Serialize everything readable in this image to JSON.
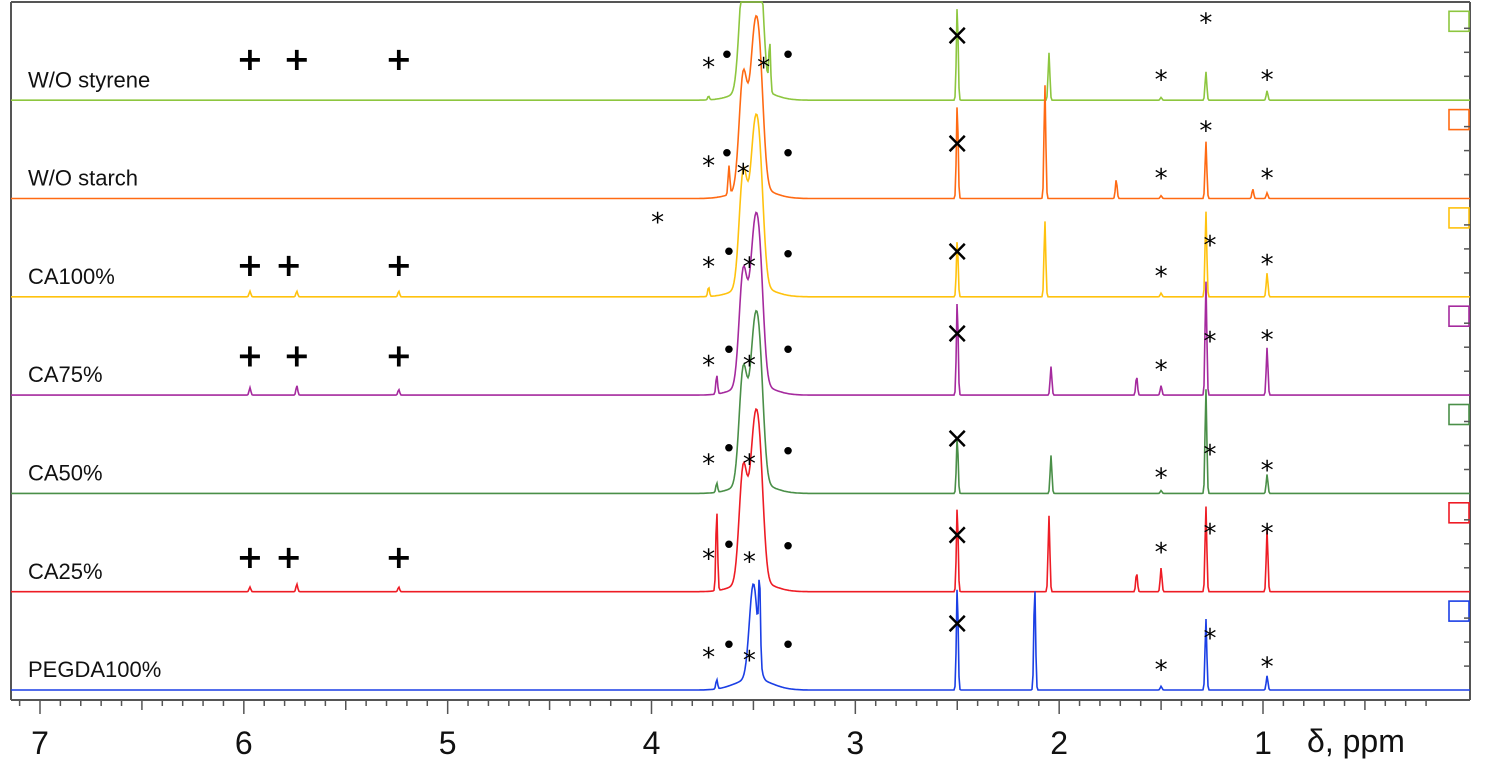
{
  "chart_data": {
    "type": "line",
    "title": "",
    "xlabel": "δ, ppm",
    "ylabel": "",
    "xlim": [
      7.3,
      0.1
    ],
    "x_reversed": true,
    "grid": false,
    "x_ticks": [
      {
        "value": 7,
        "label": "7"
      },
      {
        "value": 6,
        "label": "6"
      },
      {
        "value": 5,
        "label": "5"
      },
      {
        "value": 4,
        "label": "4"
      },
      {
        "value": 3,
        "label": "3"
      },
      {
        "value": 2,
        "label": "2"
      },
      {
        "value": 1,
        "label": "1"
      }
    ],
    "series": [
      {
        "name": "W/O styrene",
        "color": "#8dc63f",
        "base": 0.03,
        "peaks": [
          [
            3.72,
            0.04
          ],
          [
            3.55,
            1.2
          ],
          [
            3.5,
            1.2
          ],
          [
            3.47,
            1.2
          ],
          [
            3.42,
            0.5
          ],
          [
            2.5,
            1.0
          ],
          [
            2.05,
            0.5
          ],
          [
            1.5,
            0.03
          ],
          [
            1.28,
            0.3
          ],
          [
            0.98,
            0.1
          ]
        ],
        "markers": [
          {
            "sym": "+",
            "x": 5.97,
            "h": 0.32
          },
          {
            "sym": "+",
            "x": 5.74,
            "h": 0.32
          },
          {
            "sym": "+",
            "x": 5.24,
            "h": 0.32
          },
          {
            "sym": "*",
            "x": 3.72,
            "h": 0.38
          },
          {
            "sym": "•",
            "x": 3.63,
            "h": 0.38
          },
          {
            "sym": "*",
            "x": 3.45,
            "h": 0.38
          },
          {
            "sym": "•",
            "x": 3.33,
            "h": 0.38
          },
          {
            "sym": "×",
            "x": 2.5,
            "h": 0.58
          },
          {
            "sym": "*",
            "x": 1.5,
            "h": 0.25
          },
          {
            "sym": "*",
            "x": 1.28,
            "h": 0.85
          },
          {
            "sym": "*",
            "x": 0.98,
            "h": 0.25
          }
        ]
      },
      {
        "name": "W/O starch",
        "color": "#ff6a13",
        "base": 0.03,
        "peaks": [
          [
            3.62,
            0.3
          ],
          [
            3.55,
            1.2
          ],
          [
            3.5,
            1.2
          ],
          [
            3.47,
            1.2
          ],
          [
            2.5,
            1.0
          ],
          [
            2.07,
            1.2
          ],
          [
            1.72,
            0.2
          ],
          [
            1.5,
            0.03
          ],
          [
            1.28,
            0.6
          ],
          [
            1.05,
            0.1
          ],
          [
            0.98,
            0.06
          ]
        ],
        "markers": [
          {
            "sym": "*",
            "x": 3.72,
            "h": 0.38
          },
          {
            "sym": "•",
            "x": 3.63,
            "h": 0.38
          },
          {
            "sym": "*",
            "x": 3.55,
            "h": 0.3
          },
          {
            "sym": "•",
            "x": 3.33,
            "h": 0.38
          },
          {
            "sym": "×",
            "x": 2.5,
            "h": 0.48
          },
          {
            "sym": "*",
            "x": 1.5,
            "h": 0.25
          },
          {
            "sym": "*",
            "x": 1.28,
            "h": 0.75
          },
          {
            "sym": "*",
            "x": 0.98,
            "h": 0.25
          }
        ]
      },
      {
        "name": "CA100%",
        "color": "#ffc20e",
        "base": 0.03,
        "peaks": [
          [
            5.97,
            0.06
          ],
          [
            5.74,
            0.06
          ],
          [
            5.24,
            0.06
          ],
          [
            3.72,
            0.1
          ],
          [
            3.55,
            1.2
          ],
          [
            3.5,
            1.2
          ],
          [
            3.47,
            1.2
          ],
          [
            2.5,
            0.6
          ],
          [
            2.07,
            0.8
          ],
          [
            1.5,
            0.04
          ],
          [
            1.28,
            0.9
          ],
          [
            0.98,
            0.25
          ]
        ],
        "markers": [
          {
            "sym": "*",
            "x": 3.97,
            "h": 0.82
          },
          {
            "sym": "+",
            "x": 5.97,
            "h": 0.22
          },
          {
            "sym": "+",
            "x": 5.78,
            "h": 0.22
          },
          {
            "sym": "+",
            "x": 5.24,
            "h": 0.22
          },
          {
            "sym": "*",
            "x": 3.72,
            "h": 0.35
          },
          {
            "sym": "•",
            "x": 3.62,
            "h": 0.38
          },
          {
            "sym": "*",
            "x": 3.52,
            "h": 0.35
          },
          {
            "sym": "•",
            "x": 3.33,
            "h": 0.35
          },
          {
            "sym": "×",
            "x": 2.5,
            "h": 0.38
          },
          {
            "sym": "*",
            "x": 1.5,
            "h": 0.25
          },
          {
            "sym": "*",
            "x": 1.26,
            "h": 0.58
          },
          {
            "sym": "*",
            "x": 0.98,
            "h": 0.38
          }
        ]
      },
      {
        "name": "CA75%",
        "color": "#a52a9e",
        "base": 0.03,
        "peaks": [
          [
            5.97,
            0.08
          ],
          [
            5.74,
            0.1
          ],
          [
            5.24,
            0.06
          ],
          [
            3.68,
            0.2
          ],
          [
            3.55,
            1.2
          ],
          [
            3.5,
            1.2
          ],
          [
            3.47,
            1.2
          ],
          [
            2.5,
            1.0
          ],
          [
            2.04,
            0.3
          ],
          [
            1.62,
            0.2
          ],
          [
            1.5,
            0.1
          ],
          [
            1.28,
            1.2
          ],
          [
            0.98,
            0.5
          ]
        ],
        "markers": [
          {
            "sym": "+",
            "x": 5.97,
            "h": 0.3
          },
          {
            "sym": "+",
            "x": 5.74,
            "h": 0.3
          },
          {
            "sym": "+",
            "x": 5.24,
            "h": 0.3
          },
          {
            "sym": "*",
            "x": 3.72,
            "h": 0.35
          },
          {
            "sym": "•",
            "x": 3.62,
            "h": 0.38
          },
          {
            "sym": "*",
            "x": 3.52,
            "h": 0.35
          },
          {
            "sym": "•",
            "x": 3.33,
            "h": 0.38
          },
          {
            "sym": "×",
            "x": 2.5,
            "h": 0.55
          },
          {
            "sym": "*",
            "x": 1.5,
            "h": 0.3
          },
          {
            "sym": "*",
            "x": 1.26,
            "h": 0.6
          },
          {
            "sym": "*",
            "x": 0.98,
            "h": 0.62
          }
        ]
      },
      {
        "name": "CA50%",
        "color": "#4a8f48",
        "base": 0.03,
        "peaks": [
          [
            3.68,
            0.1
          ],
          [
            3.55,
            1.2
          ],
          [
            3.5,
            1.2
          ],
          [
            3.47,
            1.2
          ],
          [
            2.5,
            0.6
          ],
          [
            2.04,
            0.4
          ],
          [
            1.5,
            0.03
          ],
          [
            1.28,
            1.1
          ],
          [
            0.98,
            0.2
          ]
        ],
        "markers": [
          {
            "sym": "*",
            "x": 3.72,
            "h": 0.35
          },
          {
            "sym": "•",
            "x": 3.62,
            "h": 0.38
          },
          {
            "sym": "*",
            "x": 3.52,
            "h": 0.35
          },
          {
            "sym": "•",
            "x": 3.33,
            "h": 0.35
          },
          {
            "sym": "×",
            "x": 2.5,
            "h": 0.48
          },
          {
            "sym": "*",
            "x": 1.5,
            "h": 0.2
          },
          {
            "sym": "*",
            "x": 1.26,
            "h": 0.45
          },
          {
            "sym": "*",
            "x": 0.98,
            "h": 0.28
          }
        ]
      },
      {
        "name": "CA25%",
        "color": "#ee1c25",
        "base": 0.03,
        "peaks": [
          [
            5.97,
            0.05
          ],
          [
            5.74,
            0.08
          ],
          [
            5.24,
            0.05
          ],
          [
            3.68,
            0.85
          ],
          [
            3.55,
            1.2
          ],
          [
            3.5,
            1.2
          ],
          [
            3.47,
            1.2
          ],
          [
            2.5,
            0.9
          ],
          [
            2.05,
            0.8
          ],
          [
            1.62,
            0.2
          ],
          [
            1.5,
            0.25
          ],
          [
            1.28,
            0.9
          ],
          [
            0.98,
            0.65
          ]
        ],
        "markers": [
          {
            "sym": "+",
            "x": 5.97,
            "h": 0.25
          },
          {
            "sym": "+",
            "x": 5.78,
            "h": 0.25
          },
          {
            "sym": "+",
            "x": 5.24,
            "h": 0.25
          },
          {
            "sym": "*",
            "x": 3.72,
            "h": 0.38
          },
          {
            "sym": "•",
            "x": 3.62,
            "h": 0.4
          },
          {
            "sym": "*",
            "x": 3.52,
            "h": 0.35
          },
          {
            "sym": "•",
            "x": 3.33,
            "h": 0.38
          },
          {
            "sym": "×",
            "x": 2.5,
            "h": 0.5
          },
          {
            "sym": "*",
            "x": 1.5,
            "h": 0.45
          },
          {
            "sym": "*",
            "x": 1.26,
            "h": 0.65
          },
          {
            "sym": "*",
            "x": 0.98,
            "h": 0.65
          }
        ]
      },
      {
        "name": "PEGDA100%",
        "color": "#1b3fe5",
        "base": 0.03,
        "peaks": [
          [
            3.68,
            0.1
          ],
          [
            3.5,
            1.0
          ],
          [
            3.47,
            0.8
          ],
          [
            2.5,
            1.1
          ],
          [
            2.12,
            1.1
          ],
          [
            1.5,
            0.04
          ],
          [
            1.28,
            0.75
          ],
          [
            0.98,
            0.15
          ]
        ],
        "markers": [
          {
            "sym": "*",
            "x": 3.72,
            "h": 0.38
          },
          {
            "sym": "•",
            "x": 3.62,
            "h": 0.38
          },
          {
            "sym": "*",
            "x": 3.52,
            "h": 0.35
          },
          {
            "sym": "•",
            "x": 3.33,
            "h": 0.38
          },
          {
            "sym": "×",
            "x": 2.5,
            "h": 0.6
          },
          {
            "sym": "*",
            "x": 1.5,
            "h": 0.25
          },
          {
            "sym": "*",
            "x": 1.26,
            "h": 0.58
          },
          {
            "sym": "*",
            "x": 0.98,
            "h": 0.28
          }
        ]
      }
    ]
  }
}
